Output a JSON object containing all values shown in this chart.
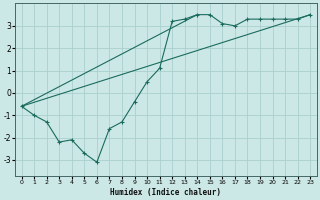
{
  "title": "",
  "xlabel": "Humidex (Indice chaleur)",
  "ylabel": "",
  "background_color": "#cce8e6",
  "grid_color": "#aacfcc",
  "line_color": "#1a6b5e",
  "xlim": [
    -0.5,
    23.5
  ],
  "ylim": [
    -3.7,
    4.0
  ],
  "xticks": [
    0,
    1,
    2,
    3,
    4,
    5,
    6,
    7,
    8,
    9,
    10,
    11,
    12,
    13,
    14,
    15,
    16,
    17,
    18,
    19,
    20,
    21,
    22,
    23
  ],
  "yticks": [
    -3,
    -2,
    -1,
    0,
    1,
    2,
    3
  ],
  "series1_x": [
    0,
    1,
    2,
    3,
    4,
    5,
    6,
    7,
    8,
    9,
    10,
    11,
    12,
    13,
    14,
    15,
    16,
    17,
    18,
    19,
    20,
    21,
    22,
    23
  ],
  "series1_y": [
    -0.6,
    -1.0,
    -1.3,
    -2.2,
    -2.1,
    -2.7,
    -3.1,
    -1.6,
    -1.3,
    -0.4,
    0.5,
    1.1,
    3.2,
    3.3,
    3.5,
    3.5,
    3.1,
    3.0,
    3.3,
    3.3,
    3.3,
    3.3,
    3.3,
    3.5
  ],
  "series3_x": [
    0,
    23
  ],
  "series3_y": [
    -0.6,
    3.5
  ],
  "series4_x": [
    0,
    14
  ],
  "series4_y": [
    -0.6,
    3.5
  ],
  "xlabel_fontsize": 5.5,
  "tick_fontsize": 4.5,
  "ytick_fontsize": 5.5
}
